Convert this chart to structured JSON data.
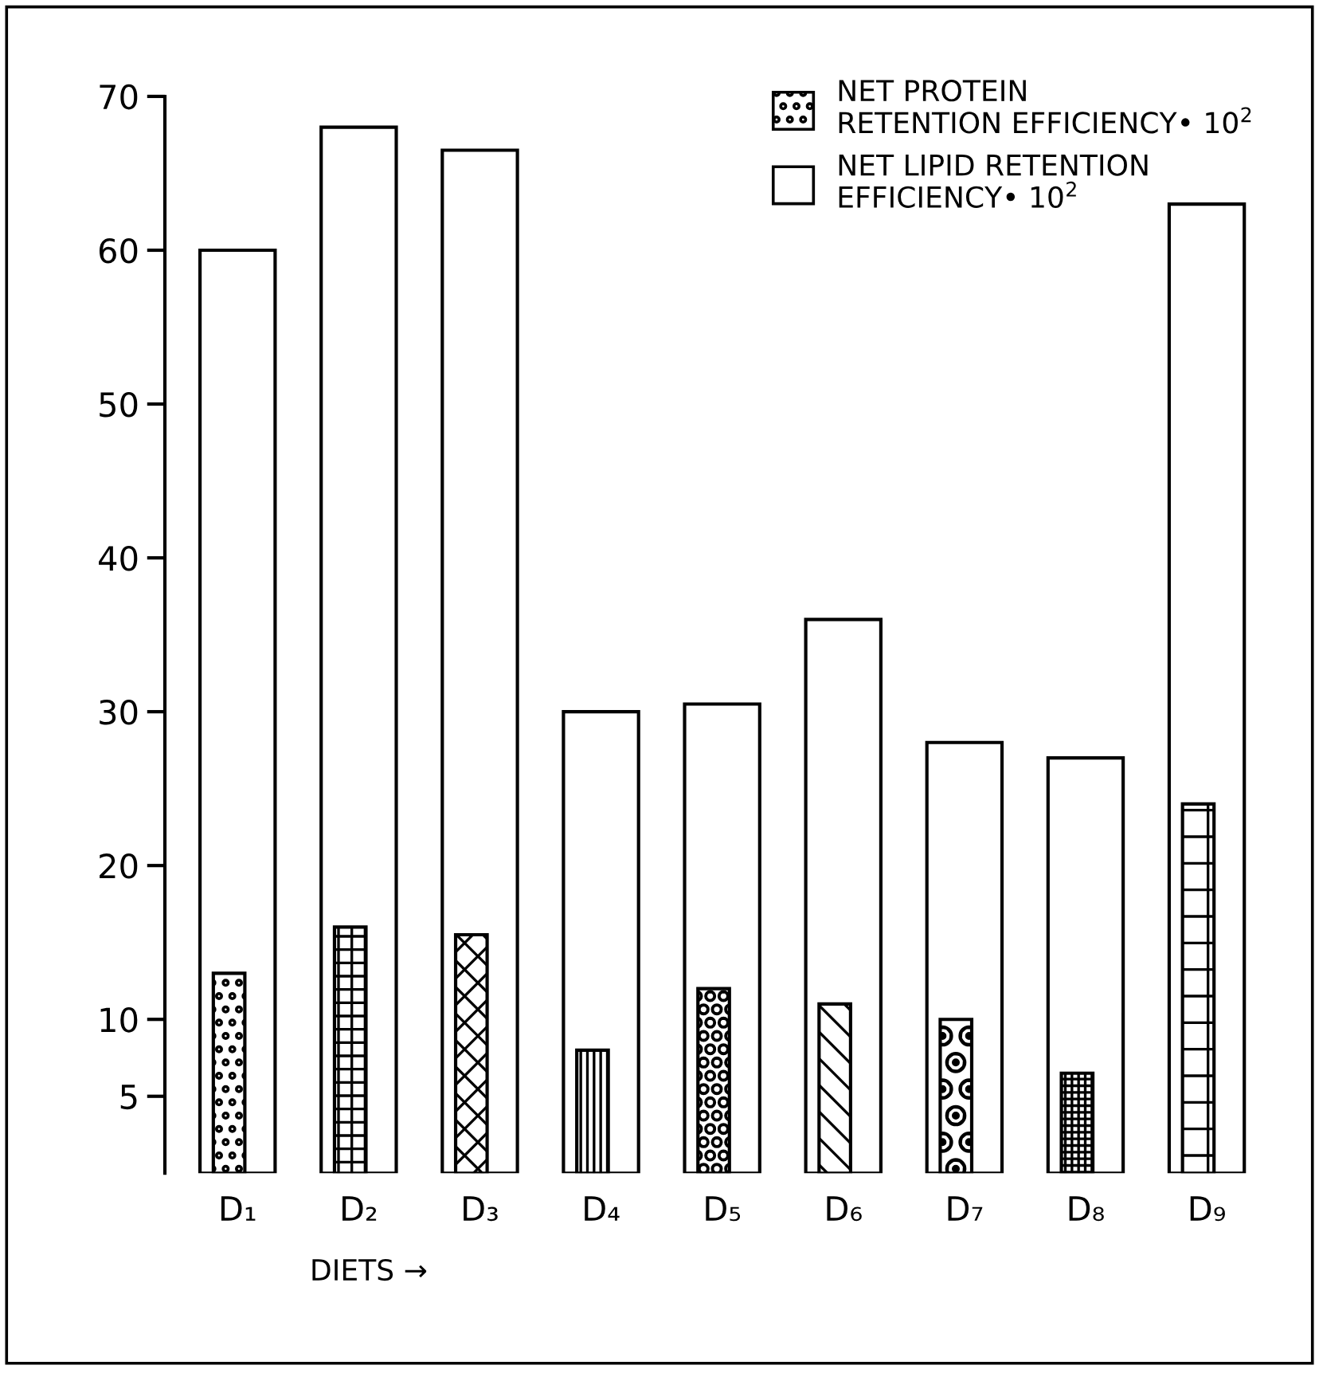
{
  "chart_data": {
    "type": "bar",
    "categories": [
      "D₁",
      "D₂",
      "D₃",
      "D₄",
      "D₅",
      "D₆",
      "D₇",
      "D₈",
      "D₉"
    ],
    "xlabel": "DIETS →",
    "series": [
      {
        "name": "NET PROTEIN\nRETENTION EFFICIENCY• 10$^{2}$",
        "color": "#000000",
        "values": [
          13,
          16,
          15.5,
          8,
          12,
          11,
          10,
          6.5,
          24
        ]
      },
      {
        "name": "NET LIPID RETENTION\nEFFICIENCY• 10$^{2}$",
        "color": "#ffffff",
        "values": [
          60,
          68,
          66.5,
          30,
          30.5,
          36,
          28,
          27,
          63
        ]
      }
    ],
    "ylim": [
      0,
      70
    ],
    "yticks": [
      5,
      10,
      20,
      30,
      40,
      50,
      60,
      70
    ],
    "grid": false,
    "legend": "top right"
  }
}
